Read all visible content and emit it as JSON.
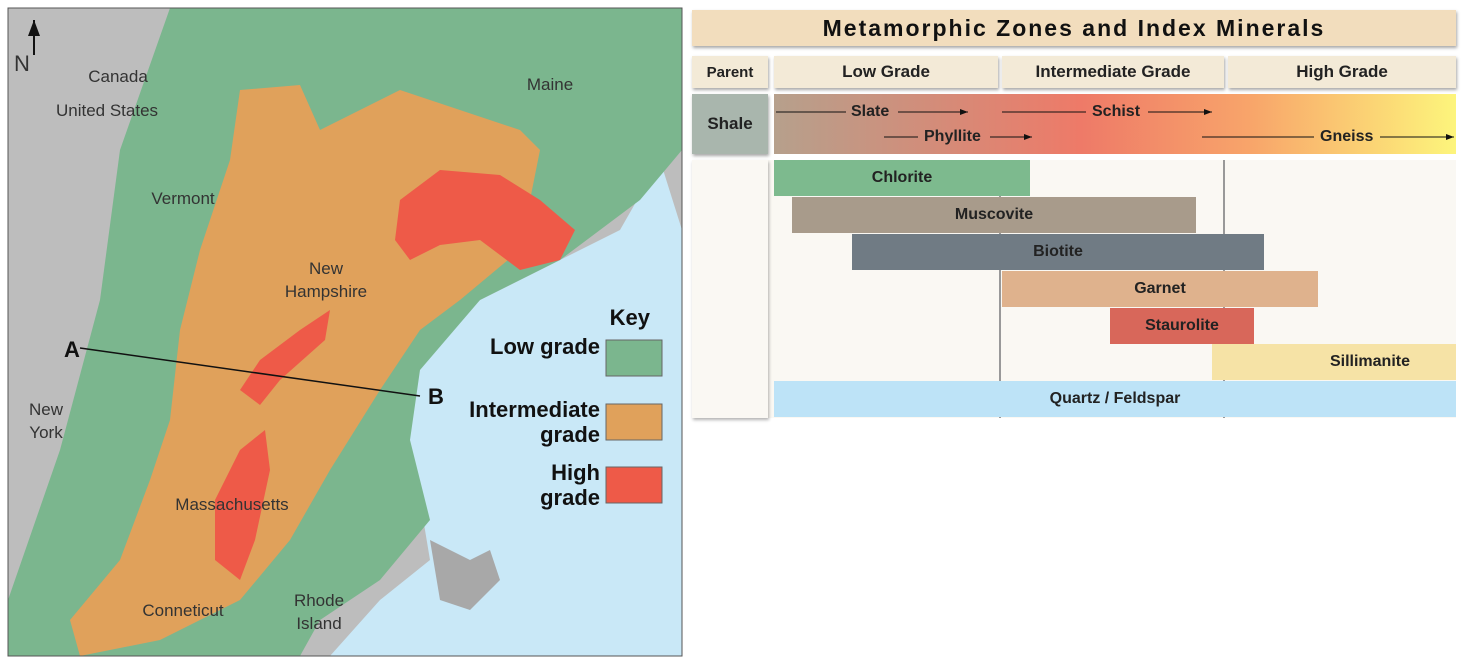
{
  "map": {
    "north": "N",
    "labels": [
      "Canada",
      "United States",
      "Maine",
      "Vermont",
      "New Hampshire",
      "New York",
      "Massachusetts",
      "Conneticut",
      "Rhode Island"
    ],
    "points": [
      "A",
      "B"
    ],
    "key": {
      "title": "Key",
      "items": [
        "Low grade",
        "Intermediate grade",
        "High grade"
      ]
    }
  },
  "diagram": {
    "title": "Metamorphic Zones and Index Minerals",
    "headers": [
      "Parent",
      "Low Grade",
      "Intermediate Grade",
      "High Grade"
    ],
    "parent": "Shale",
    "rocks": [
      "Slate",
      "Phyllite",
      "Schist",
      "Gneiss"
    ],
    "minerals": [
      "Chlorite",
      "Muscovite",
      "Biotite",
      "Garnet",
      "Staurolite",
      "Sillimanite",
      "Quartz / Feldspar"
    ]
  }
}
